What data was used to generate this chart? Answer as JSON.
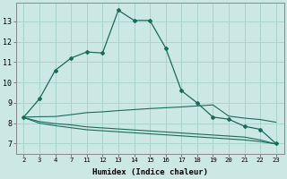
{
  "xlabel": "Humidex (Indice chaleur)",
  "bg_color": "#cce8e4",
  "line_color": "#1a6b5a",
  "grid_color": "#aad4ce",
  "x_labels": [
    "2",
    "3",
    "4",
    "7",
    "11",
    "12",
    "13",
    "14",
    "15",
    "16",
    "17",
    "18",
    "19",
    "20",
    "21",
    "22",
    "23"
  ],
  "ylim": [
    6.5,
    13.9
  ],
  "yticks": [
    7,
    8,
    9,
    10,
    11,
    12,
    13
  ],
  "line1_y": [
    8.3,
    9.2,
    10.6,
    11.2,
    11.5,
    11.45,
    13.55,
    13.05,
    13.05,
    11.7,
    9.6,
    9.0,
    8.3,
    8.2,
    7.85,
    7.7,
    7.0
  ],
  "line1_markers": [
    1,
    1,
    1,
    1,
    1,
    1,
    1,
    1,
    1,
    1,
    1,
    1,
    1,
    1,
    1,
    1,
    1
  ],
  "line2_y": [
    8.3,
    8.32,
    8.33,
    8.42,
    8.52,
    8.56,
    8.62,
    8.67,
    8.72,
    8.76,
    8.8,
    8.85,
    8.9,
    8.35,
    8.25,
    8.18,
    8.05
  ],
  "line3_y": [
    8.28,
    8.0,
    7.88,
    7.78,
    7.68,
    7.63,
    7.58,
    7.53,
    7.48,
    7.43,
    7.38,
    7.33,
    7.28,
    7.23,
    7.18,
    7.1,
    6.98
  ],
  "line4_y": [
    8.28,
    8.08,
    7.98,
    7.92,
    7.82,
    7.77,
    7.72,
    7.67,
    7.62,
    7.57,
    7.52,
    7.47,
    7.42,
    7.37,
    7.32,
    7.18,
    6.98
  ]
}
